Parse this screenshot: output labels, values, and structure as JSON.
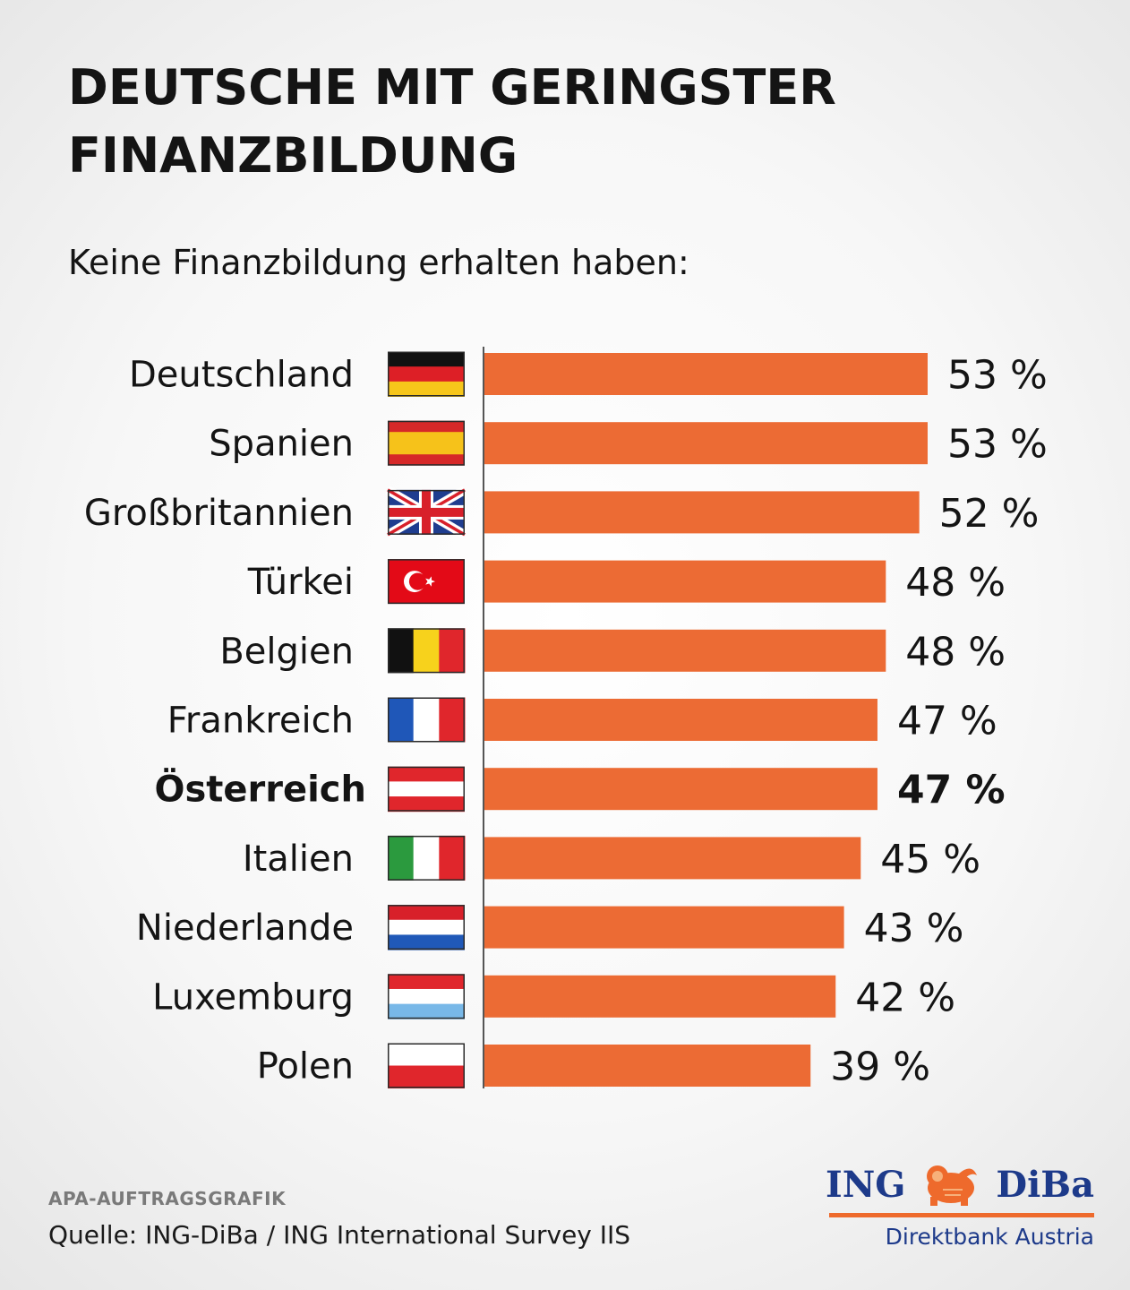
{
  "header": {
    "title_line1": "DEUTSCHE MIT GERINGSTER",
    "title_line2": "FINANZBILDUNG",
    "subtitle": "Keine Finanzbildung erhalten haben:"
  },
  "chart_data": {
    "type": "bar",
    "orientation": "horizontal",
    "title": "DEUTSCHE MIT GERINGSTER FINANZBILDUNG",
    "subtitle": "Keine Finanzbildung erhalten haben:",
    "categories": [
      "Deutschland",
      "Spanien",
      "Großbritannien",
      "Türkei",
      "Belgien",
      "Frankreich",
      "Österreich",
      "Italien",
      "Niederlande",
      "Luxemburg",
      "Polen"
    ],
    "values": [
      53,
      53,
      52,
      48,
      48,
      47,
      47,
      45,
      43,
      42,
      39
    ],
    "value_labels": [
      "53 %",
      "53 %",
      "52 %",
      "48 %",
      "48 %",
      "47 %",
      "47 %",
      "45 %",
      "43 %",
      "42 %",
      "39 %"
    ],
    "highlighted_category": "Österreich",
    "flags": [
      "flag-germany",
      "flag-spain",
      "flag-united-kingdom",
      "flag-turkey",
      "flag-belgium",
      "flag-france",
      "flag-austria",
      "flag-italy",
      "flag-netherlands",
      "flag-luxembourg",
      "flag-poland"
    ],
    "unit": "%",
    "xlim": [
      0,
      53
    ],
    "bar_color": "#ec6b34",
    "grid": false,
    "legend": "none"
  },
  "footer": {
    "credit": "APA-AUFTRAGSGRAFIK",
    "source": "Quelle: ING-DiBa / ING International Survey IIS"
  },
  "logo": {
    "brand_left": "ING",
    "brand_right": "DiBa",
    "icon": "lion-icon",
    "tagline": "Direktbank Austria",
    "brand_color": "#1d3a8a",
    "accent_color": "#ee6a2c"
  }
}
